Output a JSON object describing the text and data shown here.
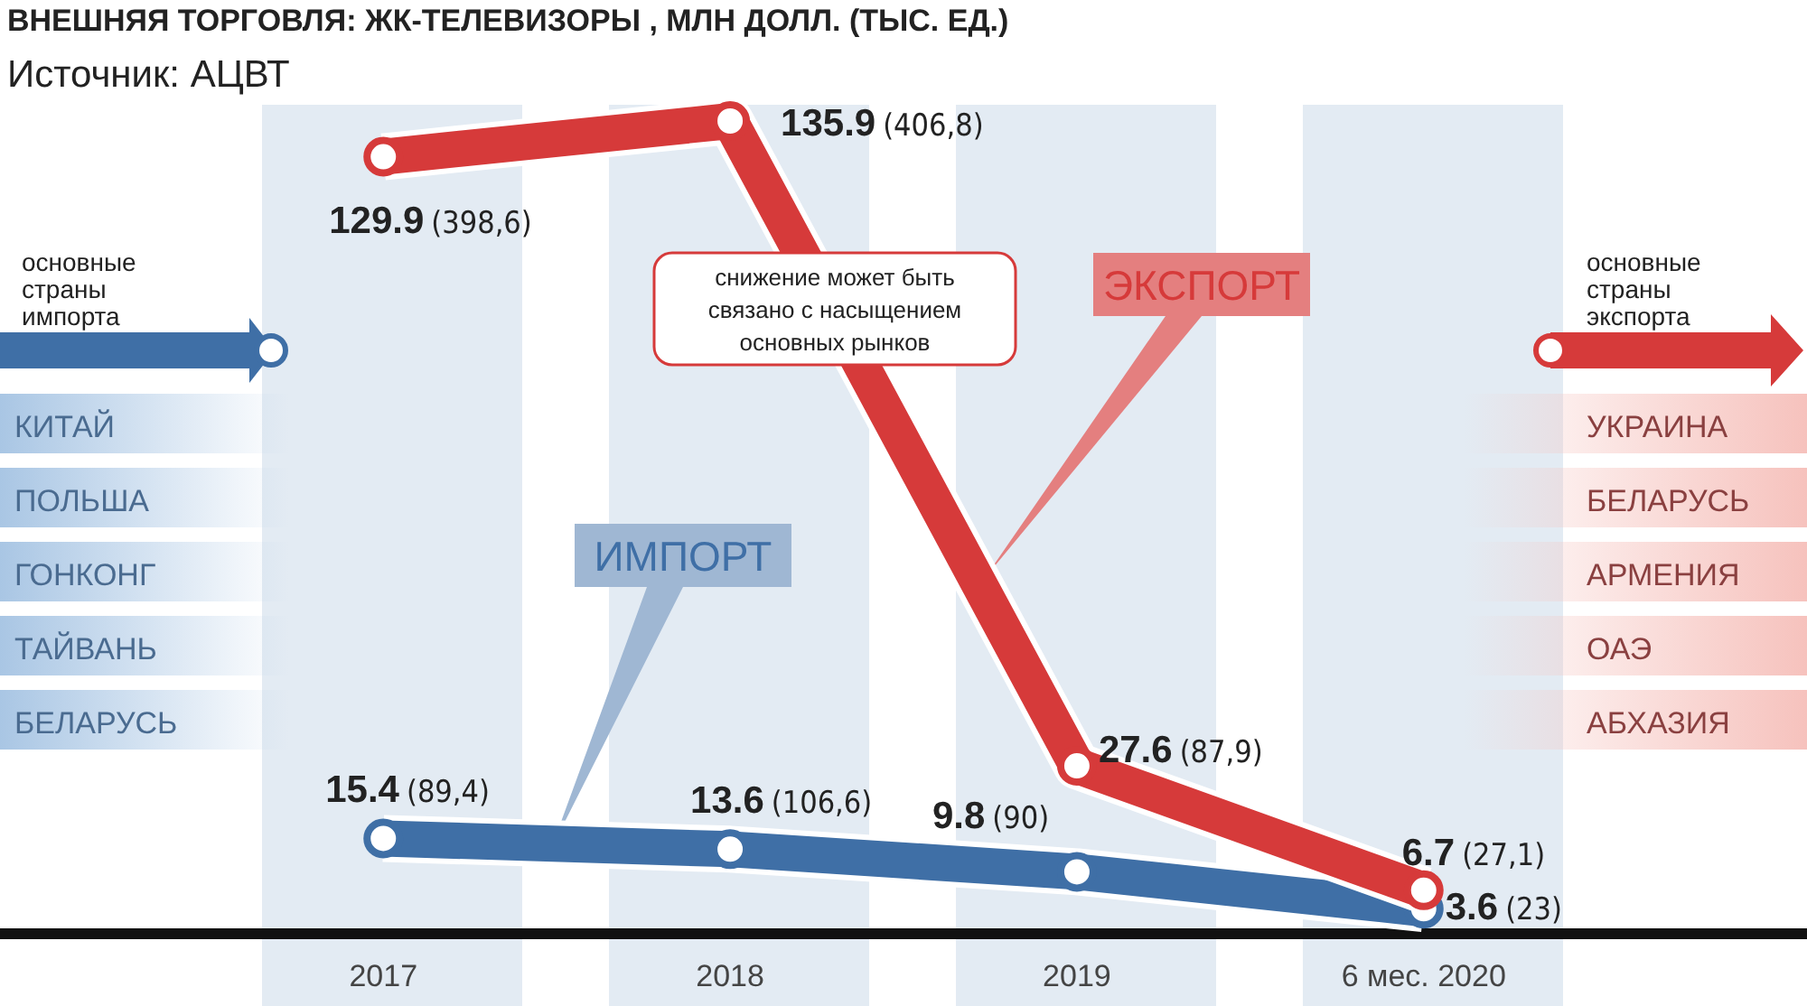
{
  "chart_data": {
    "type": "line",
    "title": "ВНЕШНЯЯ ТОРГОВЛЯ: ЖК-ТЕЛЕВИЗОРЫ , МЛН ДОЛЛ. (ТЫС. ЕД.)",
    "subtitle": "Источник: АЦВТ",
    "categories": [
      "2017",
      "2018",
      "2019",
      "6 мес. 2020"
    ],
    "tick_labels": "x",
    "marker": "circle",
    "series": [
      {
        "name": "ЭКСПОРТ",
        "color": "#d63a3a",
        "values": [
          129.9,
          135.9,
          27.6,
          6.7
        ],
        "value_labels": [
          "129.9 (398,6)",
          "135.9 (406,8)",
          "27.6 (87,9)",
          "6.7 (27,1)"
        ]
      },
      {
        "name": "ИМПОРТ",
        "color": "#3f6fa6",
        "values": [
          15.4,
          13.6,
          9.8,
          3.6
        ],
        "value_labels": [
          "15.4 (89,4)",
          "13.6 (106,6)",
          "9.8 (90)",
          "3.6 (23)"
        ]
      }
    ],
    "annotations": [
      "снижение может быть связано с насыщением основных рынков",
      "основные страны импорта",
      "КИТАЙ",
      "ПОЛЬША",
      "ГОНКОНГ",
      "ТАЙВАНЬ",
      "БЕЛАРУСЬ",
      "основные страны экспорта",
      "УКРАИНА",
      "БЕЛАРУСЬ",
      "АРМЕНИЯ",
      "ОАЭ",
      "АБХАЗИЯ"
    ]
  }
}
